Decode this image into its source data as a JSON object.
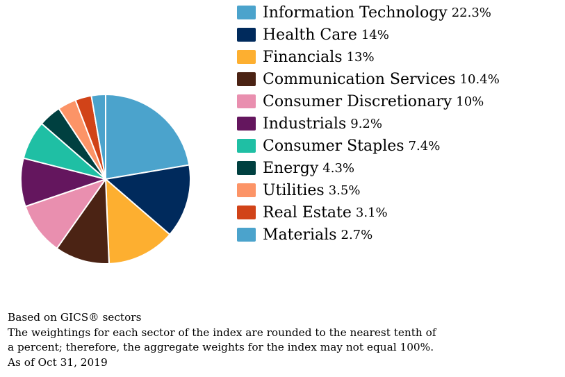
{
  "chart_data": {
    "type": "pie",
    "title": "",
    "slices": [
      {
        "label": "Information Technology",
        "value": 22.3,
        "value_label": "22.3%",
        "color": "#4BA3CC"
      },
      {
        "label": "Health Care",
        "value": 14,
        "value_label": "14%",
        "color": "#002A5C"
      },
      {
        "label": "Financials",
        "value": 13,
        "value_label": "13%",
        "color": "#FDAF30"
      },
      {
        "label": "Communication Services",
        "value": 10.4,
        "value_label": "10.4%",
        "color": "#4B2314"
      },
      {
        "label": "Consumer Discretionary",
        "value": 10,
        "value_label": "10%",
        "color": "#E98FAF"
      },
      {
        "label": "Industrials",
        "value": 9.2,
        "value_label": "9.2%",
        "color": "#64165E"
      },
      {
        "label": "Consumer Staples",
        "value": 7.4,
        "value_label": "7.4%",
        "color": "#1FBFA4"
      },
      {
        "label": "Energy",
        "value": 4.3,
        "value_label": "4.3%",
        "color": "#004040"
      },
      {
        "label": "Utilities",
        "value": 3.5,
        "value_label": "3.5%",
        "color": "#FC9467"
      },
      {
        "label": "Real Estate",
        "value": 3.1,
        "value_label": "3.1%",
        "color": "#D14318"
      },
      {
        "label": "Materials",
        "value": 2.7,
        "value_label": "2.7%",
        "color": "#4BA3CC"
      }
    ],
    "legend_position": "right"
  },
  "footnotes": {
    "line1": "Based on GICS® sectors",
    "line2": "The weightings for each sector of the index are rounded to the nearest tenth of",
    "line3": "a percent; therefore, the aggregate weights for the index may not equal 100%.",
    "line4": "As of Oct 31, 2019"
  }
}
